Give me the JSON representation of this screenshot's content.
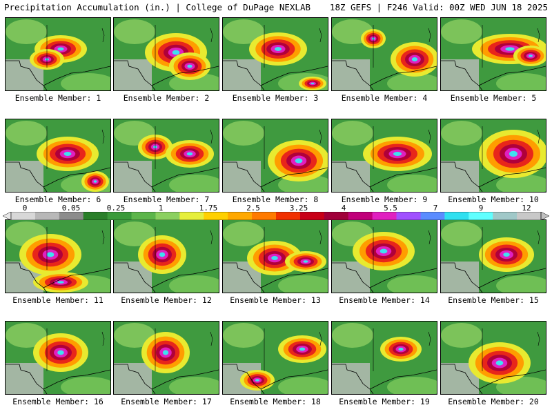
{
  "header": {
    "title_left": "Precipitation Accumulation (in.) | College of DuPage NEXLAB",
    "title_right": "18Z GEFS | F246 Valid: 00Z WED JUN 18 2025"
  },
  "legend": {
    "ticks": [
      "0",
      "0.05",
      "0.25",
      "1",
      "1.75",
      "2.5",
      "3.25",
      "4",
      "5.5",
      "7",
      "9",
      "12"
    ],
    "colors": [
      "#d8d8d8",
      "#b8b8b8",
      "#8c8c8c",
      "#2a7f2a",
      "#3a9a3a",
      "#5cb54a",
      "#8bd060",
      "#e6ef3c",
      "#ffd000",
      "#ffa800",
      "#ff7a00",
      "#f03000",
      "#c80018",
      "#a0003a",
      "#c0007a",
      "#e020c0",
      "#a050ff",
      "#5a8cff",
      "#30e0f0",
      "#60ffff",
      "#a0c8c8",
      "#c8c8c8"
    ]
  },
  "panels": [
    {
      "label": "Ensemble Member: 1"
    },
    {
      "label": "Ensemble Member: 2"
    },
    {
      "label": "Ensemble Member: 3"
    },
    {
      "label": "Ensemble Member: 4"
    },
    {
      "label": "Ensemble Member: 5"
    },
    {
      "label": "Ensemble Member: 6"
    },
    {
      "label": "Ensemble Member: 7"
    },
    {
      "label": "Ensemble Member: 8"
    },
    {
      "label": "Ensemble Member: 9"
    },
    {
      "label": "Ensemble Member: 10"
    },
    {
      "label": "Ensemble Member: 11"
    },
    {
      "label": "Ensemble Member: 12"
    },
    {
      "label": "Ensemble Member: 13"
    },
    {
      "label": "Ensemble Member: 14"
    },
    {
      "label": "Ensemble Member: 15"
    },
    {
      "label": "Ensemble Member: 16"
    },
    {
      "label": "Ensemble Member: 17"
    },
    {
      "label": "Ensemble Member: 18"
    },
    {
      "label": "Ensemble Member: 19"
    },
    {
      "label": "Ensemble Member: 20"
    }
  ]
}
